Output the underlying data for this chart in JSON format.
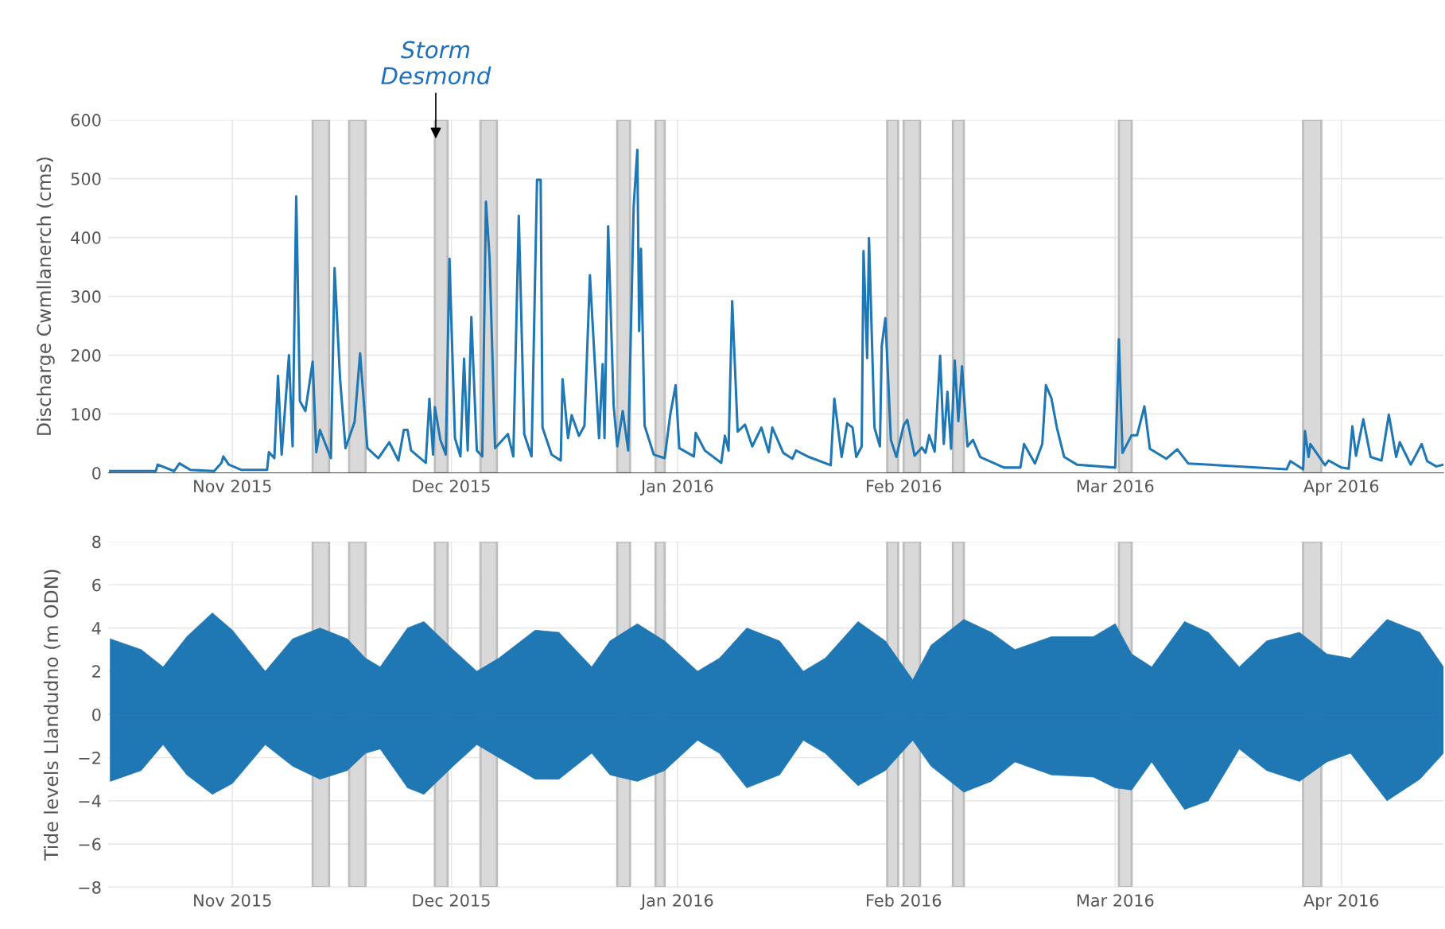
{
  "chart_data": [
    {
      "type": "line",
      "ylabel": "Discharge Cwmllanerch (cms)",
      "xlim": [
        "2015-10-15",
        "2016-04-15"
      ],
      "xticks": [
        {
          "value": "2015-11-01",
          "label": "Nov 2015"
        },
        {
          "value": "2015-12-01",
          "label": "Dec 2015"
        },
        {
          "value": "2016-01-01",
          "label": "Jan 2016"
        },
        {
          "value": "2016-02-01",
          "label": "Feb 2016"
        },
        {
          "value": "2016-03-01",
          "label": "Mar 2016"
        },
        {
          "value": "2016-04-01",
          "label": "Apr 2016"
        }
      ],
      "ylim": [
        0,
        600
      ],
      "yticks": [
        0,
        100,
        200,
        300,
        400,
        500,
        600
      ],
      "grid": true,
      "annotations": [
        {
          "text": "Storm Desmond",
          "x": "2015-11-28T21:00",
          "y": 568
        }
      ],
      "bands": [
        {
          "axis": "x",
          "from": "2015-11-12T00:00",
          "to": "2015-11-14T06:00",
          "color": "#d9d9d9"
        },
        {
          "axis": "x",
          "from": "2015-11-17T00:00",
          "to": "2015-11-19T06:00",
          "color": "#d9d9d9"
        },
        {
          "axis": "x",
          "from": "2015-11-28T18:00",
          "to": "2015-11-30T12:00",
          "color": "#d9d9d9"
        },
        {
          "axis": "x",
          "from": "2015-12-05T00:00",
          "to": "2015-12-07T06:00",
          "color": "#d9d9d9"
        },
        {
          "axis": "x",
          "from": "2015-12-23T18:00",
          "to": "2015-12-25T12:00",
          "color": "#d9d9d9"
        },
        {
          "axis": "x",
          "from": "2015-12-29T00:00",
          "to": "2015-12-30T06:00",
          "color": "#d9d9d9"
        },
        {
          "axis": "x",
          "from": "2016-01-29T18:00",
          "to": "2016-01-31T06:00",
          "color": "#d9d9d9"
        },
        {
          "axis": "x",
          "from": "2016-02-01T00:00",
          "to": "2016-02-03T06:00",
          "color": "#d9d9d9"
        },
        {
          "axis": "x",
          "from": "2016-02-07T18:00",
          "to": "2016-02-09T06:00",
          "color": "#d9d9d9"
        },
        {
          "axis": "x",
          "from": "2016-03-01T12:00",
          "to": "2016-03-03T06:00",
          "color": "#d9d9d9"
        },
        {
          "axis": "x",
          "from": "2016-03-26T18:00",
          "to": "2016-03-29T06:00",
          "color": "#d9d9d9"
        }
      ],
      "series": [
        {
          "color": "#1f77b4",
          "x": [
            "2015-10-15T06:00",
            "2015-10-21T12:00",
            "2015-10-21T18:00",
            "2015-10-24T00:00",
            "2015-10-24T18:00",
            "2015-10-26T06:00",
            "2015-10-29T12:00",
            "2015-10-30T12:00",
            "2015-10-30T18:00",
            "2015-10-31T12:00",
            "2015-11-02T06:00",
            "2015-11-05T18:00",
            "2015-11-06T00:00",
            "2015-11-06T18:00",
            "2015-11-07T06:00",
            "2015-11-07T18:00",
            "2015-11-08T18:00",
            "2015-11-09T06:00",
            "2015-11-09T18:00",
            "2015-11-10T06:00",
            "2015-11-11T00:00",
            "2015-11-12T00:00",
            "2015-11-12T12:00",
            "2015-11-13T00:00",
            "2015-11-14T12:00",
            "2015-11-15T00:00",
            "2015-11-15T18:00",
            "2015-11-16T12:00",
            "2015-11-17T18:00",
            "2015-11-18T12:00",
            "2015-11-19T12:00",
            "2015-11-21T00:00",
            "2015-11-22T12:00",
            "2015-11-23T18:00",
            "2015-11-24T12:00",
            "2015-11-25T00:00",
            "2015-11-25T12:00",
            "2015-11-27T12:00",
            "2015-11-28T00:00",
            "2015-11-28T12:00",
            "2015-11-28T18:00",
            "2015-11-29T12:00",
            "2015-11-30T06:00",
            "2015-11-30T18:00",
            "2015-12-01T12:00",
            "2015-12-02T06:00",
            "2015-12-02T18:00",
            "2015-12-03T06:00",
            "2015-12-03T18:00",
            "2015-12-04T12:00",
            "2015-12-05T06:00",
            "2015-12-05T18:00",
            "2015-12-06T06:00",
            "2015-12-07T00:00",
            "2015-12-08T18:00",
            "2015-12-09T12:00",
            "2015-12-10T06:00",
            "2015-12-11T00:00",
            "2015-12-12T00:00",
            "2015-12-12T18:00",
            "2015-12-13T06:00",
            "2015-12-13T12:00",
            "2015-12-14T18:00",
            "2015-12-16T00:00",
            "2015-12-16T06:00",
            "2015-12-17T00:00",
            "2015-12-17T12:00",
            "2015-12-18T12:00",
            "2015-12-19T06:00",
            "2015-12-20T00:00",
            "2015-12-21T06:00",
            "2015-12-21T18:00",
            "2015-12-22T00:00",
            "2015-12-22T12:00",
            "2015-12-23T06:00",
            "2015-12-23T18:00",
            "2015-12-24T12:00",
            "2015-12-25T06:00",
            "2015-12-26T00:00",
            "2015-12-26T12:00",
            "2015-12-26T18:00",
            "2015-12-27T00:00",
            "2015-12-27T12:00",
            "2015-12-28T18:00",
            "2015-12-30T06:00",
            "2015-12-31T00:00",
            "2015-12-31T18:00",
            "2016-01-01T06:00",
            "2016-01-03T06:00",
            "2016-01-03T12:00",
            "2016-01-04T18:00",
            "2016-01-07T00:00",
            "2016-01-07T12:00",
            "2016-01-08T00:00",
            "2016-01-08T12:00",
            "2016-01-09T06:00",
            "2016-01-10T06:00",
            "2016-01-11T06:00",
            "2016-01-12T12:00",
            "2016-01-13T12:00",
            "2016-01-14T00:00",
            "2016-01-15T12:00",
            "2016-01-16T18:00",
            "2016-01-17T06:00",
            "2016-01-19T00:00",
            "2016-01-22T00:00",
            "2016-01-22T12:00",
            "2016-01-23T12:00",
            "2016-01-24T06:00",
            "2016-01-25T00:00",
            "2016-01-25T12:00",
            "2016-01-26T06:00",
            "2016-01-26T12:00",
            "2016-01-27T00:00",
            "2016-01-27T06:00",
            "2016-01-28T00:00",
            "2016-01-28T18:00",
            "2016-01-29T00:00",
            "2016-01-29T12:00",
            "2016-01-30T06:00",
            "2016-01-31T00:00",
            "2016-02-01T00:00",
            "2016-02-01T12:00",
            "2016-02-02T12:00",
            "2016-02-03T12:00",
            "2016-02-04T00:00",
            "2016-02-04T12:00",
            "2016-02-05T06:00",
            "2016-02-06T00:00",
            "2016-02-06T12:00",
            "2016-02-07T00:00",
            "2016-02-07T12:00",
            "2016-02-08T00:00",
            "2016-02-08T12:00",
            "2016-02-09T00:00",
            "2016-02-09T18:00",
            "2016-02-10T12:00",
            "2016-02-11T12:00",
            "2016-02-14T18:00",
            "2016-02-17T00:00",
            "2016-02-17T12:00",
            "2016-02-19T00:00",
            "2016-02-20T00:00",
            "2016-02-20T12:00",
            "2016-02-21T06:00",
            "2016-02-22T00:00",
            "2016-02-23T00:00",
            "2016-02-24T18:00",
            "2016-03-01T00:00",
            "2016-03-01T12:00",
            "2016-03-02T00:00",
            "2016-03-03T06:00",
            "2016-03-04T00:00",
            "2016-03-05T00:00",
            "2016-03-05T18:00",
            "2016-03-08T00:00",
            "2016-03-09T12:00",
            "2016-03-11T00:00",
            "2016-03-24T12:00",
            "2016-03-25T00:00",
            "2016-03-26T18:00",
            "2016-03-27T00:00",
            "2016-03-27T12:00",
            "2016-03-27T18:00",
            "2016-03-29T18:00",
            "2016-03-30T06:00",
            "2016-04-01T00:00",
            "2016-04-02T00:00",
            "2016-04-02T12:00",
            "2016-04-03T00:00",
            "2016-04-04T00:00",
            "2016-04-05T00:00",
            "2016-04-06T12:00",
            "2016-04-07T12:00",
            "2016-04-08T12:00",
            "2016-04-09T00:00",
            "2016-04-10T12:00",
            "2016-04-12T00:00",
            "2016-04-12T18:00",
            "2016-04-14T00:00",
            "2016-04-15T00:00"
          ],
          "values": [
            3,
            3,
            14,
            3,
            16,
            5,
            3,
            17,
            28,
            14,
            5,
            5,
            35,
            25,
            165,
            31,
            200,
            45,
            470,
            122,
            105,
            189,
            35,
            73,
            25,
            348,
            161,
            42,
            87,
            203,
            42,
            25,
            52,
            21,
            73,
            73,
            38,
            17,
            126,
            31,
            112,
            56,
            31,
            364,
            59,
            28,
            194,
            38,
            265,
            38,
            28,
            461,
            364,
            42,
            66,
            28,
            437,
            66,
            28,
            498,
            498,
            77,
            31,
            21,
            159,
            59,
            98,
            63,
            80,
            336,
            59,
            185,
            59,
            419,
            115,
            45,
            105,
            38,
            454,
            549,
            241,
            381,
            80,
            31,
            25,
            98,
            149,
            42,
            28,
            68,
            38,
            17,
            63,
            38,
            292,
            70,
            82,
            45,
            77,
            35,
            77,
            34,
            24,
            38,
            27,
            13,
            126,
            27,
            84,
            77,
            27,
            45,
            377,
            195,
            399,
            77,
            45,
            216,
            263,
            56,
            27,
            81,
            90,
            29,
            43,
            34,
            64,
            36,
            199,
            49,
            138,
            41,
            191,
            88,
            181,
            45,
            56,
            27,
            9,
            9,
            49,
            16,
            49,
            149,
            127,
            77,
            27,
            14,
            9,
            227,
            34,
            64,
            64,
            113,
            41,
            24,
            40,
            16,
            6,
            20,
            6,
            71,
            27,
            49,
            13,
            21,
            9,
            7,
            79,
            29,
            91,
            27,
            21,
            99,
            27,
            52,
            14,
            49,
            20,
            11,
            14
          ]
        }
      ]
    },
    {
      "type": "line",
      "ylabel": "Tide levels Llandudno (m ODN)",
      "xlim": [
        "2015-10-15",
        "2016-04-15"
      ],
      "xticks": [
        {
          "value": "2015-11-01",
          "label": "Nov 2015"
        },
        {
          "value": "2015-12-01",
          "label": "Dec 2015"
        },
        {
          "value": "2016-01-01",
          "label": "Jan 2016"
        },
        {
          "value": "2016-02-01",
          "label": "Feb 2016"
        },
        {
          "value": "2016-03-01",
          "label": "Mar 2016"
        },
        {
          "value": "2016-04-01",
          "label": "Apr 2016"
        }
      ],
      "ylim": [
        -8,
        8
      ],
      "yticks": [
        {
          "value": -8,
          "label": "−8"
        },
        {
          "value": -6,
          "label": "−6"
        },
        {
          "value": -4,
          "label": "−4"
        },
        {
          "value": -2,
          "label": "−2"
        },
        0,
        2,
        4,
        6,
        8
      ],
      "grid": true,
      "bands": [
        {
          "axis": "x",
          "from": "2015-11-12T00:00",
          "to": "2015-11-14T06:00",
          "color": "#d9d9d9"
        },
        {
          "axis": "x",
          "from": "2015-11-17T00:00",
          "to": "2015-11-19T06:00",
          "color": "#d9d9d9"
        },
        {
          "axis": "x",
          "from": "2015-11-28T18:00",
          "to": "2015-11-30T12:00",
          "color": "#d9d9d9"
        },
        {
          "axis": "x",
          "from": "2015-12-05T00:00",
          "to": "2015-12-07T06:00",
          "color": "#d9d9d9"
        },
        {
          "axis": "x",
          "from": "2015-12-23T18:00",
          "to": "2015-12-25T12:00",
          "color": "#d9d9d9"
        },
        {
          "axis": "x",
          "from": "2015-12-29T00:00",
          "to": "2015-12-30T06:00",
          "color": "#d9d9d9"
        },
        {
          "axis": "x",
          "from": "2016-01-29T18:00",
          "to": "2016-01-31T06:00",
          "color": "#d9d9d9"
        },
        {
          "axis": "x",
          "from": "2016-02-01T00:00",
          "to": "2016-02-03T06:00",
          "color": "#d9d9d9"
        },
        {
          "axis": "x",
          "from": "2016-02-07T18:00",
          "to": "2016-02-09T06:00",
          "color": "#d9d9d9"
        },
        {
          "axis": "x",
          "from": "2016-03-01T12:00",
          "to": "2016-03-03T06:00",
          "color": "#d9d9d9"
        },
        {
          "axis": "x",
          "from": "2016-03-26T18:00",
          "to": "2016-03-29T06:00",
          "color": "#d9d9d9"
        }
      ],
      "series": [
        {
          "type": "area",
          "color": "#1f77b4",
          "x": [
            "2015-10-15T06:00",
            "2015-10-19T12:00",
            "2015-10-22T12:00",
            "2015-10-25T18:00",
            "2015-10-29T06:00",
            "2015-11-01T00:00",
            "2015-11-05T12:00",
            "2015-11-09T06:00",
            "2015-11-13T00:00",
            "2015-11-16T18:00",
            "2015-11-19T06:00",
            "2015-11-21T06:00",
            "2015-11-25T00:00",
            "2015-11-27T06:00",
            "2015-12-01T06:00",
            "2015-12-04T12:00",
            "2015-12-07T12:00",
            "2015-12-12T12:00",
            "2015-12-15T18:00",
            "2015-12-20T06:00",
            "2015-12-22T18:00",
            "2015-12-26T12:00",
            "2015-12-30T06:00",
            "2016-01-03T18:00",
            "2016-01-06T18:00",
            "2016-01-10T12:00",
            "2016-01-15T00:00",
            "2016-01-18T06:00",
            "2016-01-21T06:00",
            "2016-01-25T18:00",
            "2016-01-29T12:00",
            "2016-02-02T06:00",
            "2016-02-04T18:00",
            "2016-02-09T06:00",
            "2016-02-13T00:00",
            "2016-02-16T06:00",
            "2016-02-21T06:00",
            "2016-02-27T00:00",
            "2016-03-01T00:00",
            "2016-03-03T06:00",
            "2016-03-06T00:00",
            "2016-03-10T12:00",
            "2016-03-13T18:00",
            "2016-03-18T00:00",
            "2016-03-21T18:00",
            "2016-03-26T06:00",
            "2016-03-30T00:00",
            "2016-04-02T06:00",
            "2016-04-07T06:00",
            "2016-04-11T18:00",
            "2016-04-15T00:00"
          ],
          "values": [
            3.5,
            3.0,
            2.2,
            3.6,
            4.7,
            3.9,
            2.0,
            3.5,
            4.0,
            3.5,
            2.6,
            2.2,
            4.0,
            4.3,
            3.0,
            2.0,
            2.6,
            3.9,
            3.8,
            2.2,
            3.4,
            4.2,
            3.4,
            2.0,
            2.6,
            4.0,
            3.4,
            2.0,
            2.6,
            4.3,
            3.4,
            1.6,
            3.2,
            4.4,
            3.8,
            3.0,
            3.6,
            3.6,
            4.2,
            2.8,
            2.2,
            4.3,
            3.8,
            2.2,
            3.4,
            3.8,
            2.8,
            2.6,
            4.4,
            3.8,
            2.2
          ]
        },
        {
          "type": "area",
          "color": "#1f77b4",
          "x": [
            "2015-10-15T06:00",
            "2015-10-19T12:00",
            "2015-10-22T12:00",
            "2015-10-25T18:00",
            "2015-10-29T06:00",
            "2015-11-01T00:00",
            "2015-11-05T12:00",
            "2015-11-09T06:00",
            "2015-11-13T00:00",
            "2015-11-16T18:00",
            "2015-11-19T06:00",
            "2015-11-21T06:00",
            "2015-11-25T00:00",
            "2015-11-27T06:00",
            "2015-12-01T06:00",
            "2015-12-04T12:00",
            "2015-12-07T12:00",
            "2015-12-12T12:00",
            "2015-12-15T18:00",
            "2015-12-20T06:00",
            "2015-12-22T18:00",
            "2015-12-26T12:00",
            "2015-12-30T06:00",
            "2016-01-03T18:00",
            "2016-01-06T18:00",
            "2016-01-10T12:00",
            "2016-01-15T00:00",
            "2016-01-18T06:00",
            "2016-01-21T06:00",
            "2016-01-25T18:00",
            "2016-01-29T12:00",
            "2016-02-02T06:00",
            "2016-02-04T18:00",
            "2016-02-09T06:00",
            "2016-02-13T00:00",
            "2016-02-16T06:00",
            "2016-02-21T06:00",
            "2016-02-27T00:00",
            "2016-03-01T00:00",
            "2016-03-03T06:00",
            "2016-03-06T00:00",
            "2016-03-10T12:00",
            "2016-03-13T18:00",
            "2016-03-18T00:00",
            "2016-03-21T18:00",
            "2016-03-26T06:00",
            "2016-03-30T00:00",
            "2016-04-02T06:00",
            "2016-04-07T06:00",
            "2016-04-11T18:00",
            "2016-04-15T00:00"
          ],
          "values": [
            -3.1,
            -2.6,
            -1.4,
            -2.8,
            -3.7,
            -3.2,
            -1.4,
            -2.4,
            -3.0,
            -2.6,
            -1.8,
            -1.6,
            -3.4,
            -3.7,
            -2.4,
            -1.4,
            -2.0,
            -3.0,
            -3.0,
            -1.8,
            -2.8,
            -3.1,
            -2.6,
            -1.2,
            -1.8,
            -3.4,
            -2.8,
            -1.2,
            -1.8,
            -3.3,
            -2.6,
            -1.2,
            -2.4,
            -3.6,
            -3.1,
            -2.2,
            -2.8,
            -2.9,
            -3.4,
            -3.5,
            -2.2,
            -4.4,
            -4.0,
            -1.6,
            -2.6,
            -3.1,
            -2.2,
            -1.8,
            -4.0,
            -3.0,
            -1.8
          ]
        }
      ]
    }
  ]
}
